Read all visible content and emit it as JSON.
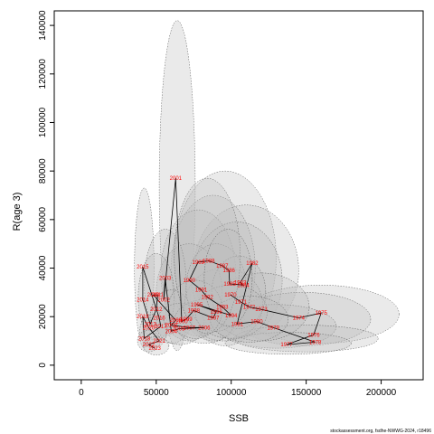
{
  "chart_data": {
    "type": "scatter",
    "xlabel": "SSB",
    "ylabel": "R(age 3)",
    "xlim": [
      -18000,
      228000
    ],
    "ylim": [
      -6000,
      146000
    ],
    "x_ticks": [
      0,
      50000,
      100000,
      150000,
      200000
    ],
    "y_ticks": [
      0,
      20000,
      40000,
      60000,
      80000,
      100000,
      120000,
      140000
    ],
    "grid": false,
    "trajectory_line_color": "#000000",
    "label_color": "#ff0000",
    "ellipse_fill": "#bdbdbd",
    "ellipse_stroke": "#555555",
    "points": [
      {
        "year": "1970",
        "ssb": 99500,
        "rec": 29000
      },
      {
        "year": "1971",
        "ssb": 106500,
        "rec": 26000
      },
      {
        "year": "1972",
        "ssb": 112000,
        "rec": 24000
      },
      {
        "year": "1973",
        "ssb": 120000,
        "rec": 23000
      },
      {
        "year": "1974",
        "ssb": 145000,
        "rec": 19500
      },
      {
        "year": "1975",
        "ssb": 160000,
        "rec": 21500
      },
      {
        "year": "1976",
        "ssb": 155000,
        "rec": 12500
      },
      {
        "year": "1977",
        "ssb": 137000,
        "rec": 8500
      },
      {
        "year": "1978",
        "ssb": 156000,
        "rec": 9500
      },
      {
        "year": "1979",
        "ssb": 128000,
        "rec": 15500
      },
      {
        "year": "1980",
        "ssb": 117000,
        "rec": 18000
      },
      {
        "year": "1981",
        "ssb": 104000,
        "rec": 17000
      },
      {
        "year": "1982",
        "ssb": 114000,
        "rec": 42000
      },
      {
        "year": "1983",
        "ssb": 106000,
        "rec": 34000
      },
      {
        "year": "1984",
        "ssb": 108000,
        "rec": 33000
      },
      {
        "year": "1985",
        "ssb": 99000,
        "rec": 33500
      },
      {
        "year": "1986",
        "ssb": 98500,
        "rec": 39000
      },
      {
        "year": "1987",
        "ssb": 94000,
        "rec": 41000
      },
      {
        "year": "1988",
        "ssb": 85000,
        "rec": 43000
      },
      {
        "year": "1989",
        "ssb": 78000,
        "rec": 42500
      },
      {
        "year": "1990",
        "ssb": 72000,
        "rec": 35000
      },
      {
        "year": "1991",
        "ssb": 80000,
        "rec": 31000
      },
      {
        "year": "1992",
        "ssb": 84000,
        "rec": 28000
      },
      {
        "year": "1993",
        "ssb": 94000,
        "rec": 24000
      },
      {
        "year": "1994",
        "ssb": 100000,
        "rec": 20500
      },
      {
        "year": "1995",
        "ssb": 77000,
        "rec": 25000
      },
      {
        "year": "1996",
        "ssb": 90000,
        "rec": 22000
      },
      {
        "year": "1997",
        "ssb": 88000,
        "rec": 19500
      },
      {
        "year": "1998",
        "ssb": 75000,
        "rec": 22500
      },
      {
        "year": "1999",
        "ssb": 70000,
        "rec": 19000
      },
      {
        "year": "2000",
        "ssb": 67000,
        "rec": 18000
      },
      {
        "year": "2001",
        "ssb": 63000,
        "rec": 77000
      },
      {
        "year": "2002",
        "ssb": 55000,
        "rec": 27000
      },
      {
        "year": "2003",
        "ssb": 56000,
        "rec": 36000
      },
      {
        "year": "2004",
        "ssb": 60000,
        "rec": 14000
      },
      {
        "year": "2005",
        "ssb": 65000,
        "rec": 15000
      },
      {
        "year": "2006",
        "ssb": 82000,
        "rec": 15500
      },
      {
        "year": "2007",
        "ssb": 72000,
        "rec": 15500
      },
      {
        "year": "2008",
        "ssb": 60000,
        "rec": 16500
      },
      {
        "year": "2009",
        "ssb": 63000,
        "rec": 18500
      },
      {
        "year": "2010",
        "ssb": 48000,
        "rec": 29000
      },
      {
        "year": "2011",
        "ssb": 51000,
        "rec": 29000
      },
      {
        "year": "2012",
        "ssb": 50000,
        "rec": 23000
      },
      {
        "year": "2013",
        "ssb": 46000,
        "rec": 17000
      },
      {
        "year": "2014",
        "ssb": 41000,
        "rec": 27000
      },
      {
        "year": "2015",
        "ssb": 41000,
        "rec": 40500
      },
      {
        "year": "2016",
        "ssb": 52000,
        "rec": 19500
      },
      {
        "year": "2017",
        "ssb": 53000,
        "rec": 16000
      },
      {
        "year": "2018",
        "ssb": 42000,
        "rec": 11000
      },
      {
        "year": "2019",
        "ssb": 41000,
        "rec": 20000
      },
      {
        "year": "2020",
        "ssb": 45000,
        "rec": 15500
      },
      {
        "year": "2021",
        "ssb": 52000,
        "rec": 10000
      },
      {
        "year": "2022",
        "ssb": 45000,
        "rec": 8500
      },
      {
        "year": "2023",
        "ssb": 49000,
        "rec": 7000
      }
    ],
    "ellipses": [
      {
        "ssb": 64000,
        "rec": 74000,
        "rx": 12000,
        "ry": 68000
      },
      {
        "ssb": 42000,
        "rec": 40000,
        "rx": 6500,
        "ry": 33000
      },
      {
        "ssb": 96000,
        "rec": 44000,
        "rx": 34000,
        "ry": 36000
      },
      {
        "ssb": 110000,
        "rec": 39000,
        "rx": 35000,
        "ry": 27000
      },
      {
        "ssb": 88000,
        "rec": 40000,
        "rx": 28000,
        "ry": 30000
      },
      {
        "ssb": 78000,
        "rec": 38000,
        "rx": 25000,
        "ry": 26000
      },
      {
        "ssb": 104000,
        "rec": 35000,
        "rx": 30000,
        "ry": 24000
      },
      {
        "ssb": 160000,
        "rec": 21000,
        "rx": 52000,
        "ry": 12000
      },
      {
        "ssb": 148000,
        "rec": 19000,
        "rx": 45000,
        "ry": 11000
      },
      {
        "ssb": 130000,
        "rec": 16000,
        "rx": 40000,
        "ry": 9000
      },
      {
        "ssb": 150000,
        "rec": 11000,
        "rx": 48000,
        "ry": 5500
      },
      {
        "ssb": 138000,
        "rec": 9000,
        "rx": 42000,
        "ry": 4500
      },
      {
        "ssb": 120000,
        "rec": 24000,
        "rx": 32000,
        "ry": 14000
      },
      {
        "ssb": 95000,
        "rec": 25000,
        "rx": 26000,
        "ry": 15000
      },
      {
        "ssb": 72000,
        "rec": 30000,
        "rx": 22000,
        "ry": 20000
      },
      {
        "ssb": 56000,
        "rec": 34000,
        "rx": 14000,
        "ry": 22000
      },
      {
        "ssb": 50000,
        "rec": 28000,
        "rx": 12000,
        "ry": 18000
      },
      {
        "ssb": 60000,
        "rec": 20000,
        "rx": 14000,
        "ry": 11000
      },
      {
        "ssb": 66000,
        "rec": 17000,
        "rx": 16000,
        "ry": 8500
      },
      {
        "ssb": 82000,
        "rec": 18000,
        "rx": 20000,
        "ry": 9000
      },
      {
        "ssb": 48000,
        "rec": 14000,
        "rx": 9000,
        "ry": 7000
      },
      {
        "ssb": 45000,
        "rec": 10000,
        "rx": 7500,
        "ry": 4500
      },
      {
        "ssb": 50000,
        "rec": 8000,
        "rx": 8500,
        "ry": 3800
      },
      {
        "ssb": 90000,
        "rec": 32000,
        "rx": 20000,
        "ry": 18000
      },
      {
        "ssb": 105000,
        "rec": 30000,
        "rx": 18000,
        "ry": 15000
      },
      {
        "ssb": 100000,
        "rec": 22000,
        "rx": 24000,
        "ry": 11000
      },
      {
        "ssb": 112000,
        "rec": 19000,
        "rx": 26000,
        "ry": 9500
      },
      {
        "ssb": 76000,
        "rec": 23000,
        "rx": 18000,
        "ry": 12000
      },
      {
        "ssb": 84000,
        "rec": 45000,
        "rx": 22000,
        "ry": 32000
      },
      {
        "ssb": 98000,
        "rec": 36000,
        "rx": 16000,
        "ry": 20000
      }
    ]
  },
  "credit": "stockassessment.org, fsdhe-NWWG-2024, r18496"
}
